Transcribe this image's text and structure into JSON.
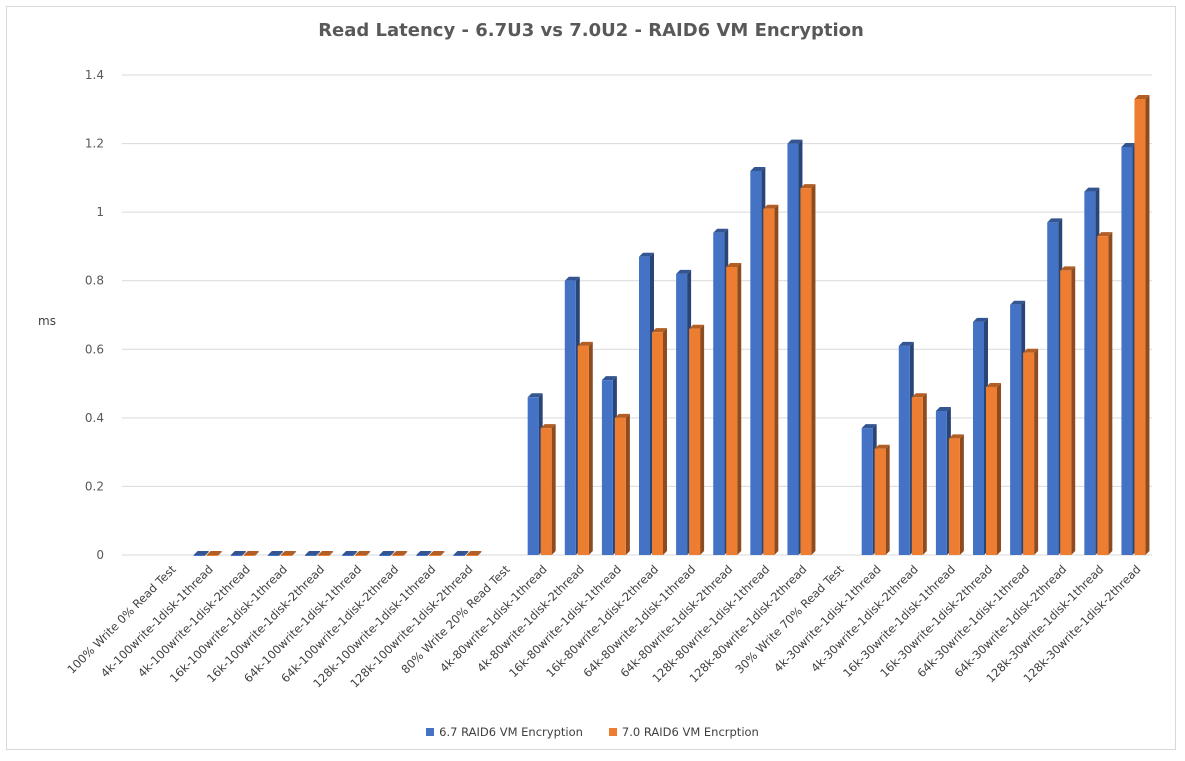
{
  "chart_data": {
    "type": "bar",
    "title": "Read Latency - 6.7U3 vs 7.0U2 - RAID6 VM Encryption",
    "ylabel": "ms",
    "xlabel": "",
    "ylim": [
      0,
      1.4
    ],
    "yticks": [
      "0",
      "0.2",
      "0.4",
      "0.6",
      "0.8",
      "1",
      "1.2",
      "1.4"
    ],
    "ytick_values": [
      0,
      0.2,
      0.4,
      0.6,
      0.8,
      1.0,
      1.2,
      1.4
    ],
    "grid": true,
    "legend_position": "bottom",
    "categories": [
      "100% Write 0% Read Test",
      "4k-100write-1disk-1thread",
      "4k-100write-1disk-2thread",
      "16k-100write-1disk-1thread",
      "16k-100write-1disk-2thread",
      "64k-100write-1disk-1thread",
      "64k-100write-1disk-2thread",
      "128k-100write-1disk-1thread",
      "128k-100write-1disk-2thread",
      "80% Write 20% Read Test",
      "4k-80write-1disk-1thread",
      "4k-80write-1disk-2thread",
      "16k-80write-1disk-1thread",
      "16k-80write-1disk-2thread",
      "64k-80write-1disk-1thread",
      "64k-80write-1disk-2thread",
      "128k-80write-1disk-1thread",
      "128k-80write-1disk-2thread",
      "30% Write 70% Read Test",
      "4k-30write-1disk-1thread",
      "4k-30write-1disk-2thread",
      "16k-30write-1disk-1thread",
      "16k-30write-1disk-2thread",
      "64k-30write-1disk-1thread",
      "64k-30write-1disk-2thread",
      "128k-30write-1disk-1thread",
      "128k-30write-1disk-2thread"
    ],
    "series": [
      {
        "name": "6.7 RAID6 VM Encryption",
        "color": "#4472c4",
        "values": [
          null,
          0,
          0,
          0,
          0,
          0,
          0,
          0,
          0,
          null,
          0.46,
          0.8,
          0.51,
          0.87,
          0.82,
          0.94,
          1.12,
          1.2,
          null,
          0.37,
          0.61,
          0.42,
          0.68,
          0.73,
          0.97,
          1.06,
          1.19
        ]
      },
      {
        "name": "7.0 RAID6 VM Encrption",
        "color": "#ed7d31",
        "values": [
          null,
          0,
          0,
          0,
          0,
          0,
          0,
          0,
          0,
          null,
          0.37,
          0.61,
          0.4,
          0.65,
          0.66,
          0.84,
          1.01,
          1.07,
          null,
          0.31,
          0.46,
          0.34,
          0.49,
          0.59,
          0.83,
          0.93,
          1.33
        ]
      }
    ]
  }
}
